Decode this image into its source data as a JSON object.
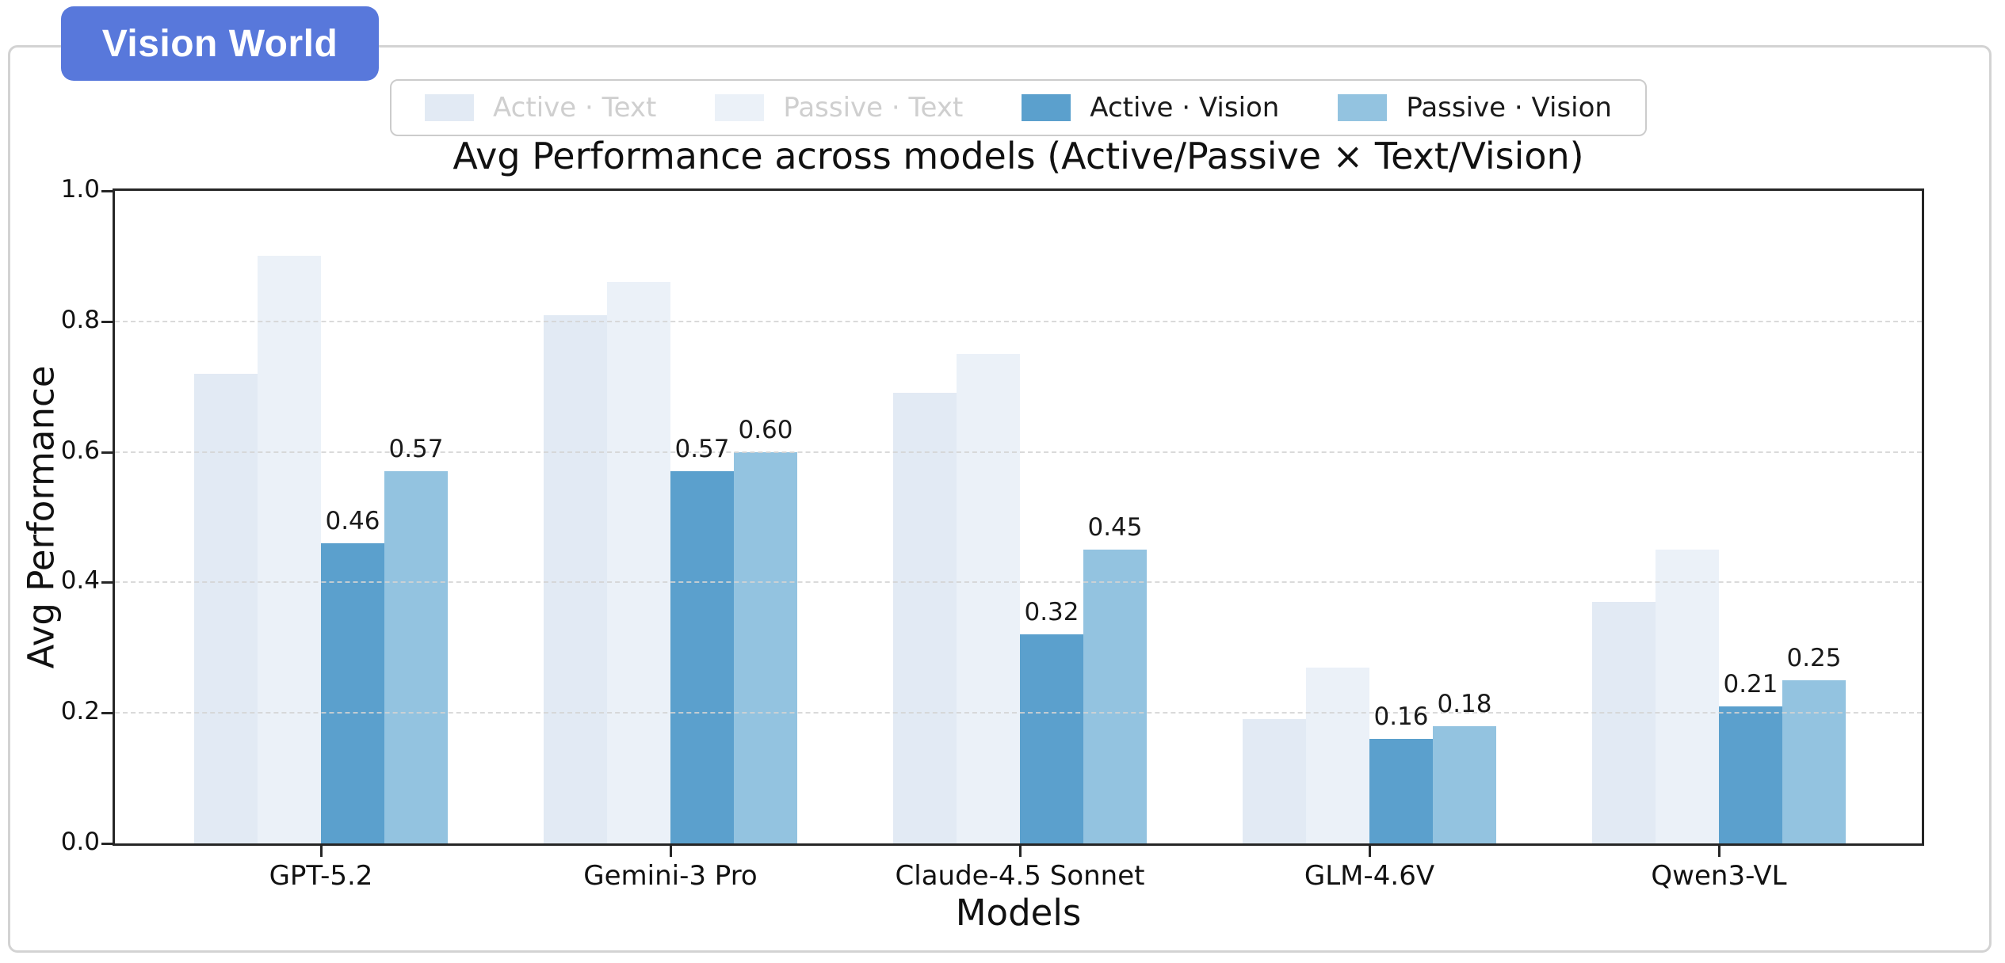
{
  "badge": {
    "label": "Vision World",
    "bg_color": "#5878db",
    "text_color": "#ffffff"
  },
  "legend": {
    "items": [
      {
        "label": "Active · Text",
        "swatch_color": "#e2eaf4",
        "text_color": "#cfcfcf",
        "muted": true
      },
      {
        "label": "Passive · Text",
        "swatch_color": "#ebf1f8",
        "text_color": "#cfcfcf",
        "muted": true
      },
      {
        "label": "Active · Vision",
        "swatch_color": "#5ba0cd",
        "text_color": "#1a1a1a",
        "muted": false
      },
      {
        "label": "Passive · Vision",
        "swatch_color": "#93c3e0",
        "text_color": "#1a1a1a",
        "muted": false
      }
    ]
  },
  "chart_data": {
    "type": "bar",
    "title": "Avg Performance across models (Active/Passive × Text/Vision)",
    "xlabel": "Models",
    "ylabel": "Avg Performance",
    "ylim": [
      0.0,
      1.0
    ],
    "yticks": [
      0.0,
      0.2,
      0.4,
      0.6,
      0.8,
      1.0
    ],
    "ytick_labels": [
      "0.0",
      "0.2",
      "0.4",
      "0.6",
      "0.8",
      "1.0"
    ],
    "grid": "horizontal dashed gridlines at 0.2 intervals",
    "legend_position": "top center, outside axes",
    "categories": [
      "GPT-5.2",
      "Gemini-3 Pro",
      "Claude-4.5 Sonnet",
      "GLM-4.6V",
      "Qwen3-VL"
    ],
    "series": [
      {
        "name": "Active · Text",
        "color": "#e2eaf4",
        "values": [
          0.72,
          0.81,
          0.69,
          0.19,
          0.37
        ],
        "value_labels": null
      },
      {
        "name": "Passive · Text",
        "color": "#ebf1f8",
        "values": [
          0.9,
          0.86,
          0.75,
          0.27,
          0.45
        ],
        "value_labels": null
      },
      {
        "name": "Active · Vision",
        "color": "#5ba0cd",
        "values": [
          0.46,
          0.57,
          0.32,
          0.16,
          0.21
        ],
        "value_labels": [
          "0.46",
          "0.57",
          "0.32",
          "0.16",
          "0.21"
        ]
      },
      {
        "name": "Passive · Vision",
        "color": "#93c3e0",
        "values": [
          0.57,
          0.6,
          0.45,
          0.18,
          0.25
        ],
        "value_labels": [
          "0.57",
          "0.60",
          "0.45",
          "0.18",
          "0.25"
        ]
      }
    ]
  }
}
